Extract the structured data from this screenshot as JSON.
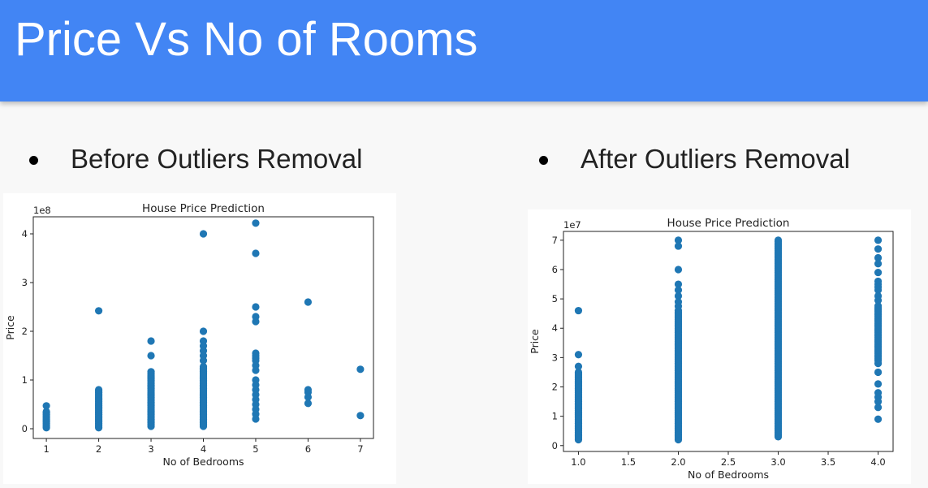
{
  "slide": {
    "title": "Price Vs No of Rooms",
    "bullets": [
      "Before Outliers Removal",
      "After Outliers Removal"
    ]
  },
  "colors": {
    "header": "#4285f4",
    "marker": "#1f77b4"
  },
  "chart_data": [
    {
      "type": "scatter",
      "title": "House Price Prediction",
      "xlabel": "No of Bedrooms",
      "ylabel": "Price",
      "y_offset_label": "1e8",
      "xlim": [
        0.75,
        7.25
      ],
      "ylim": [
        -0.2,
        4.35
      ],
      "xticks": [
        1,
        2,
        3,
        4,
        5,
        6,
        7
      ],
      "xtick_labels": [
        "1",
        "2",
        "3",
        "4",
        "5",
        "6",
        "7"
      ],
      "yticks": [
        0,
        1,
        2,
        3,
        4
      ],
      "ytick_labels": [
        "0",
        "1",
        "2",
        "3",
        "4"
      ],
      "grid": false,
      "dense_columns": [
        {
          "x": 1,
          "y_min": 0.02,
          "y_max": 0.35,
          "step": 0.03
        },
        {
          "x": 2,
          "y_min": 0.02,
          "y_max": 0.8,
          "step": 0.03
        },
        {
          "x": 3,
          "y_min": 0.05,
          "y_max": 1.2,
          "step": 0.035
        },
        {
          "x": 4,
          "y_min": 0.05,
          "y_max": 1.3,
          "step": 0.035
        }
      ],
      "points": [
        [
          1,
          0.47
        ],
        [
          2,
          2.42
        ],
        [
          3,
          1.8
        ],
        [
          3,
          1.5
        ],
        [
          4,
          4.0
        ],
        [
          4,
          2.0
        ],
        [
          4,
          1.8
        ],
        [
          4,
          1.7
        ],
        [
          4,
          1.6
        ],
        [
          4,
          1.5
        ],
        [
          4,
          1.4
        ],
        [
          5,
          4.22
        ],
        [
          5,
          3.6
        ],
        [
          5,
          2.5
        ],
        [
          5,
          2.3
        ],
        [
          5,
          2.2
        ],
        [
          5,
          1.55
        ],
        [
          5,
          1.5
        ],
        [
          5,
          1.45
        ],
        [
          5,
          1.4
        ],
        [
          5,
          1.3
        ],
        [
          5,
          1.2
        ],
        [
          5,
          1.0
        ],
        [
          5,
          0.9
        ],
        [
          5,
          0.8
        ],
        [
          5,
          0.7
        ],
        [
          5,
          0.6
        ],
        [
          5,
          0.5
        ],
        [
          5,
          0.4
        ],
        [
          5,
          0.3
        ],
        [
          5,
          0.2
        ],
        [
          6,
          2.6
        ],
        [
          6,
          0.8
        ],
        [
          6,
          0.75
        ],
        [
          6,
          0.65
        ],
        [
          6,
          0.52
        ],
        [
          7,
          1.22
        ],
        [
          7,
          0.27
        ]
      ]
    },
    {
      "type": "scatter",
      "title": "House Price Prediction",
      "xlabel": "No of Bedrooms",
      "ylabel": "Price",
      "y_offset_label": "1e7",
      "xlim": [
        0.85,
        4.15
      ],
      "ylim": [
        -0.2,
        7.3
      ],
      "xticks": [
        1.0,
        1.5,
        2.0,
        2.5,
        3.0,
        3.5,
        4.0
      ],
      "xtick_labels": [
        "1.0",
        "1.5",
        "2.0",
        "2.5",
        "3.0",
        "3.5",
        "4.0"
      ],
      "yticks": [
        0,
        1,
        2,
        3,
        4,
        5,
        6,
        7
      ],
      "ytick_labels": [
        "0",
        "1",
        "2",
        "3",
        "4",
        "5",
        "6",
        "7"
      ],
      "grid": false,
      "dense_columns": [
        {
          "x": 1.0,
          "y_min": 0.2,
          "y_max": 2.5,
          "step": 0.05
        },
        {
          "x": 2.0,
          "y_min": 0.2,
          "y_max": 4.6,
          "step": 0.05
        },
        {
          "x": 3.0,
          "y_min": 0.3,
          "y_max": 7.0,
          "step": 0.05
        },
        {
          "x": 4.0,
          "y_min": 2.9,
          "y_max": 4.8,
          "step": 0.06
        }
      ],
      "points": [
        [
          1.0,
          4.6
        ],
        [
          1.0,
          3.1
        ],
        [
          1.0,
          2.7
        ],
        [
          2.0,
          7.0
        ],
        [
          2.0,
          6.8
        ],
        [
          2.0,
          6.0
        ],
        [
          2.0,
          5.5
        ],
        [
          2.0,
          5.3
        ],
        [
          2.0,
          5.1
        ],
        [
          2.0,
          4.9
        ],
        [
          2.0,
          4.75
        ],
        [
          4.0,
          7.0
        ],
        [
          4.0,
          6.7
        ],
        [
          4.0,
          6.4
        ],
        [
          4.0,
          6.2
        ],
        [
          4.0,
          5.9
        ],
        [
          4.0,
          5.6
        ],
        [
          4.0,
          5.5
        ],
        [
          4.0,
          5.4
        ],
        [
          4.0,
          5.3
        ],
        [
          4.0,
          5.1
        ],
        [
          4.0,
          4.95
        ],
        [
          4.0,
          2.8
        ],
        [
          4.0,
          2.5
        ],
        [
          4.0,
          2.1
        ],
        [
          4.0,
          1.8
        ],
        [
          4.0,
          1.65
        ],
        [
          4.0,
          1.5
        ],
        [
          4.0,
          1.3
        ],
        [
          4.0,
          0.9
        ]
      ]
    }
  ]
}
